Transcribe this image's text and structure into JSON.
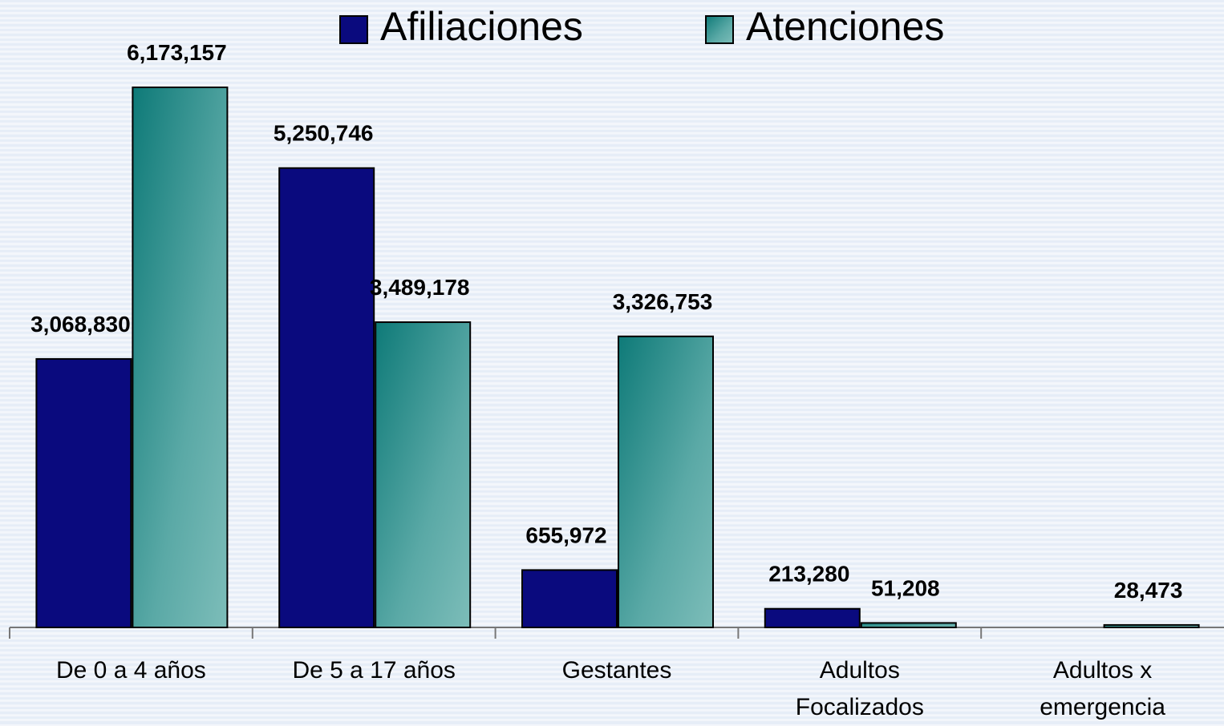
{
  "chart_data": {
    "type": "bar",
    "categories": [
      "De 0 a 4 años",
      "De 5 a 17 años",
      "Gestantes",
      "Adultos Focalizados",
      "Adultos x emergencia"
    ],
    "series": [
      {
        "name": "Afiliaciones",
        "color": "#0a0a7e",
        "values": [
          3068830,
          5250746,
          655972,
          213280,
          null
        ],
        "value_labels": [
          "3,068,830",
          "5,250,746",
          "655,972",
          "213,280",
          null
        ]
      },
      {
        "name": "Atenciones",
        "color": "#2a8c88",
        "values": [
          6173157,
          3489178,
          3326753,
          51208,
          28473
        ],
        "value_labels": [
          "6,173,157",
          "3,489,178",
          "3,326,753",
          "51,208",
          "28,473"
        ]
      }
    ],
    "legend": "top"
  }
}
